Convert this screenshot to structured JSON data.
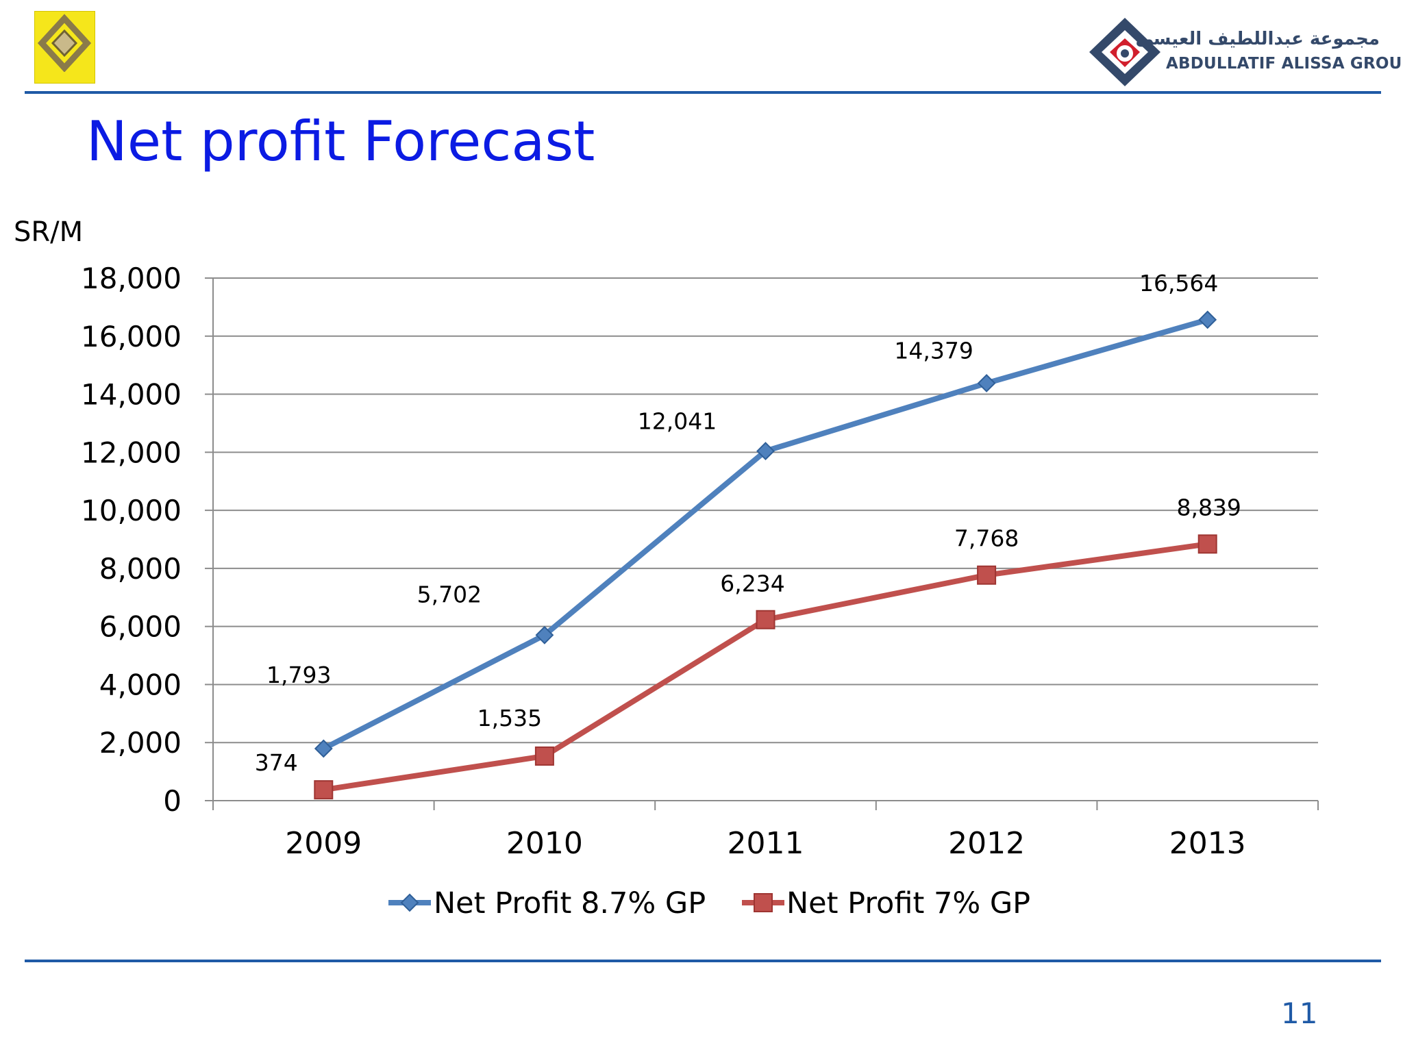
{
  "header": {
    "left_logo": {
      "name": "renault-logo",
      "text": "RENAULT",
      "color": "#f5e61b"
    },
    "right_logo": {
      "name": "abdullatif-alissa-group-logo",
      "arabic_text": "مجموعة عبداللطيف العيسى",
      "english_text": "ABDULLATIF ALISSA GROUP",
      "colors": {
        "navy": "#34496a",
        "red": "#d11f2d"
      }
    }
  },
  "slide": {
    "title": "Net profit Forecast",
    "page_number": "11",
    "title_color": "#0b1be3",
    "rule_color": "#1f5aa6"
  },
  "chart_data": {
    "type": "line",
    "title": "",
    "ylabel": "SR/M",
    "xlabel": "",
    "categories": [
      "2009",
      "2010",
      "2011",
      "2012",
      "2013"
    ],
    "ylim": [
      0,
      18000
    ],
    "yticks": [
      0,
      2000,
      4000,
      6000,
      8000,
      10000,
      12000,
      14000,
      16000,
      18000
    ],
    "ytick_labels": [
      "0",
      "2,000",
      "4,000",
      "6,000",
      "8,000",
      "10,000",
      "12,000",
      "14,000",
      "16,000",
      "18,000"
    ],
    "grid": true,
    "legend_position": "bottom",
    "series": [
      {
        "name": "Net Profit 8.7% GP",
        "values": [
          1793,
          5702,
          12041,
          14379,
          16564
        ],
        "labels": [
          "1,793",
          "5,702",
          "12,041",
          "14,379",
          "16,564"
        ],
        "color": "#4f81bd",
        "marker": "diamond"
      },
      {
        "name": "Net Profit 7% GP",
        "values": [
          374,
          1535,
          6234,
          7768,
          8839
        ],
        "labels": [
          "374",
          "1,535",
          "6,234",
          "7,768",
          "8,839"
        ],
        "color": "#c0504d",
        "marker": "square"
      }
    ]
  }
}
